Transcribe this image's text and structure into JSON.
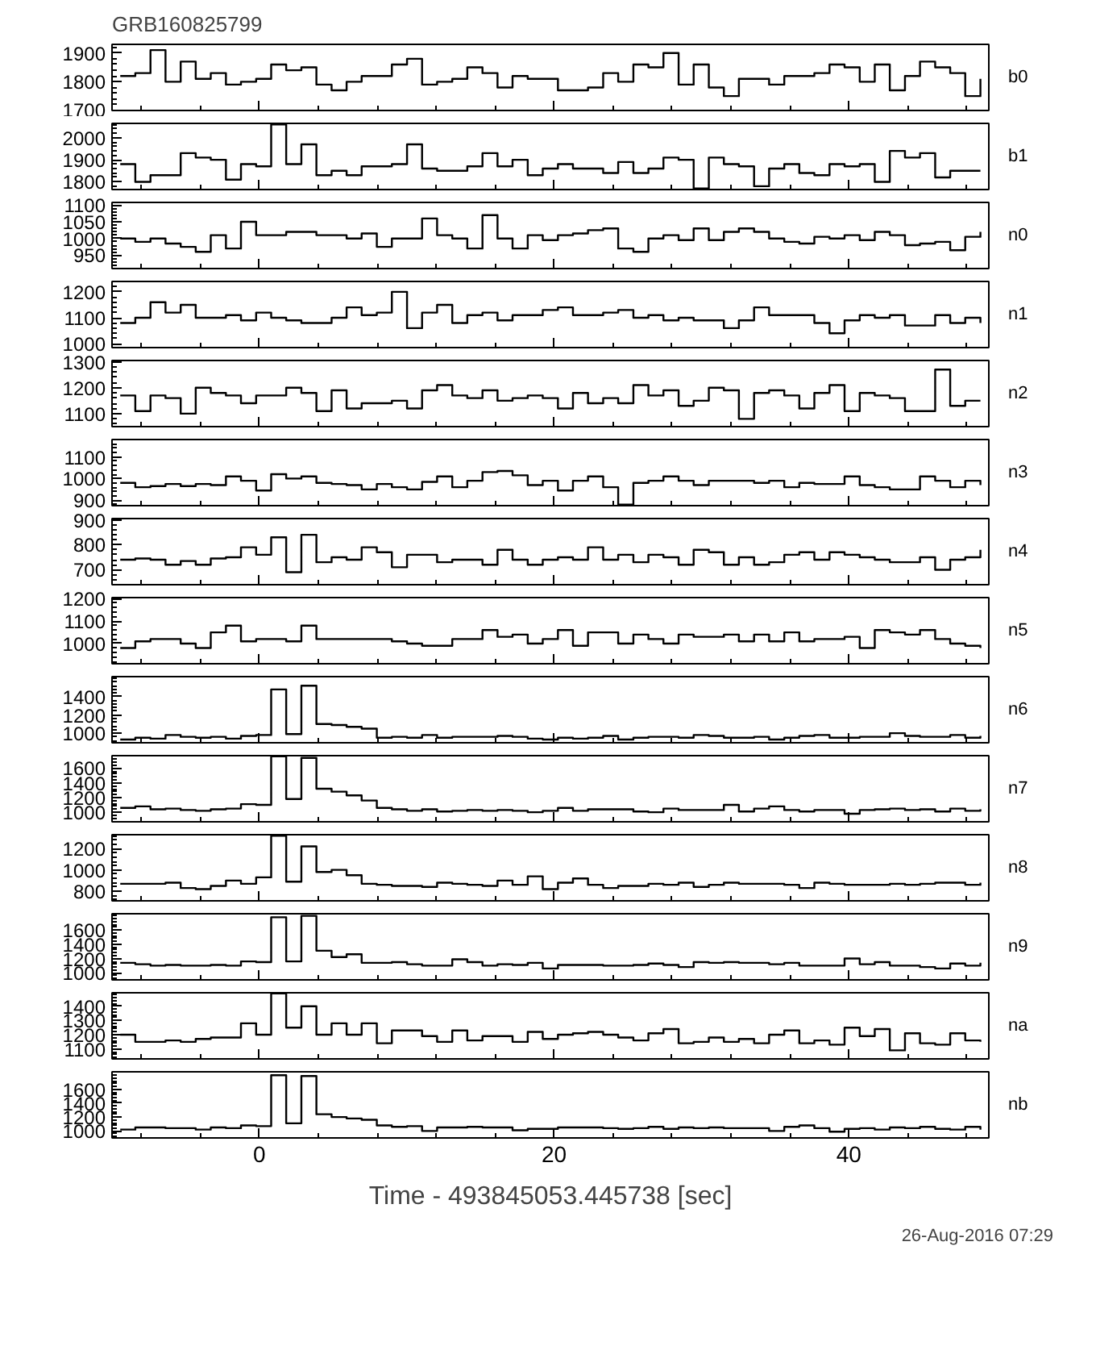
{
  "chart_data": [
    {
      "type": "step",
      "title": "GRB160825799",
      "xlim": [
        -10,
        49.5
      ],
      "xticks": [
        0,
        20,
        40
      ],
      "ylim": [
        1700,
        1930
      ],
      "yticks": [
        1700,
        1800,
        1900
      ],
      "tick_labels": "y",
      "x": [
        -9.44,
        -8.42,
        -7.39,
        -6.37,
        -5.34,
        -4.32,
        -3.3,
        -2.27,
        -1.25,
        -0.22,
        0.8,
        1.82,
        2.85,
        3.87,
        4.9,
        5.92,
        6.94,
        7.97,
        8.99,
        10.02,
        11.04,
        12.06,
        13.09,
        14.11,
        15.14,
        16.16,
        17.18,
        18.21,
        19.23,
        20.26,
        21.28,
        22.3,
        23.33,
        24.35,
        25.38,
        26.4,
        27.42,
        28.45,
        29.47,
        30.5,
        31.52,
        32.54,
        33.57,
        34.59,
        35.62,
        36.64,
        37.66,
        38.69,
        39.71,
        40.74,
        41.76,
        42.78,
        43.81,
        44.83,
        45.86,
        46.88,
        47.9,
        48.93
      ],
      "series": [
        {
          "name": "b0",
          "color": "#000000",
          "values": [
            1820,
            1830,
            1910,
            1800,
            1870,
            1810,
            1830,
            1790,
            1800,
            1810,
            1860,
            1840,
            1850,
            1790,
            1770,
            1800,
            1820,
            1820,
            1860,
            1880,
            1790,
            1800,
            1810,
            1850,
            1830,
            1780,
            1820,
            1810,
            1810,
            1770,
            1770,
            1780,
            1830,
            1800,
            1860,
            1850,
            1900,
            1790,
            1860,
            1780,
            1750,
            1810,
            1810,
            1790,
            1820,
            1820,
            1830,
            1860,
            1850,
            1800,
            1860,
            1770,
            1820,
            1870,
            1850,
            1830,
            1750,
            1810
          ]
        }
      ]
    },
    {
      "type": "step",
      "xlim": [
        -10,
        49.5
      ],
      "xticks": [
        0,
        20,
        40
      ],
      "ylim": [
        1765,
        2065
      ],
      "yticks": [
        1800,
        1900,
        2000
      ],
      "tick_labels": "y",
      "x": [
        -9.44,
        -8.42,
        -7.39,
        -6.37,
        -5.34,
        -4.32,
        -3.3,
        -2.27,
        -1.25,
        -0.22,
        0.8,
        1.82,
        2.85,
        3.87,
        4.9,
        5.92,
        6.94,
        7.97,
        8.99,
        10.02,
        11.04,
        12.06,
        13.09,
        14.11,
        15.14,
        16.16,
        17.18,
        18.21,
        19.23,
        20.26,
        21.28,
        22.3,
        23.33,
        24.35,
        25.38,
        26.4,
        27.42,
        28.45,
        29.47,
        30.5,
        31.52,
        32.54,
        33.57,
        34.59,
        35.62,
        36.64,
        37.66,
        38.69,
        39.71,
        40.74,
        41.76,
        42.78,
        43.81,
        44.83,
        45.86,
        46.88,
        47.9,
        48.93
      ],
      "series": [
        {
          "name": "b1",
          "color": "#000000",
          "values": [
            1880,
            1800,
            1830,
            1830,
            1930,
            1910,
            1900,
            1810,
            1880,
            1870,
            2060,
            1880,
            1970,
            1830,
            1850,
            1830,
            1870,
            1870,
            1880,
            1970,
            1860,
            1850,
            1850,
            1870,
            1930,
            1870,
            1900,
            1830,
            1860,
            1880,
            1860,
            1860,
            1840,
            1890,
            1840,
            1860,
            1910,
            1900,
            1770,
            1910,
            1880,
            1870,
            1780,
            1860,
            1880,
            1840,
            1830,
            1880,
            1870,
            1880,
            1800,
            1940,
            1910,
            1930,
            1820,
            1850,
            1850,
            1850
          ]
        }
      ]
    },
    {
      "type": "step",
      "xlim": [
        -10,
        49.5
      ],
      "xticks": [
        0,
        20,
        40
      ],
      "ylim": [
        910,
        1108
      ],
      "yticks": [
        950,
        1000,
        1050,
        1100
      ],
      "tick_labels": "y",
      "x": [
        -9.44,
        -8.42,
        -7.39,
        -6.37,
        -5.34,
        -4.32,
        -3.3,
        -2.27,
        -1.25,
        -0.22,
        0.8,
        1.82,
        2.85,
        3.87,
        4.9,
        5.92,
        6.94,
        7.97,
        8.99,
        10.02,
        11.04,
        12.06,
        13.09,
        14.11,
        15.14,
        16.16,
        17.18,
        18.21,
        19.23,
        20.26,
        21.28,
        22.3,
        23.33,
        24.35,
        25.38,
        26.4,
        27.42,
        28.45,
        29.47,
        30.5,
        31.52,
        32.54,
        33.57,
        34.59,
        35.62,
        36.64,
        37.66,
        38.69,
        39.71,
        40.74,
        41.76,
        42.78,
        43.81,
        44.83,
        45.86,
        46.88,
        47.9,
        48.93
      ],
      "series": [
        {
          "name": "n0",
          "color": "#000000",
          "values": [
            1000,
            990,
            1000,
            985,
            975,
            960,
            1010,
            970,
            1050,
            1010,
            1010,
            1020,
            1020,
            1010,
            1010,
            1000,
            1015,
            975,
            1000,
            1000,
            1060,
            1010,
            1000,
            970,
            1070,
            1000,
            970,
            1010,
            995,
            1010,
            1015,
            1025,
            1030,
            970,
            960,
            1000,
            1010,
            995,
            1030,
            995,
            1020,
            1030,
            1020,
            1000,
            990,
            985,
            1005,
            1000,
            1010,
            995,
            1020,
            1010,
            980,
            985,
            990,
            965,
            1005,
            1020
          ]
        }
      ]
    },
    {
      "type": "step",
      "xlim": [
        -10,
        49.5
      ],
      "xticks": [
        0,
        20,
        40
      ],
      "ylim": [
        985,
        1240
      ],
      "yticks": [
        1000,
        1100,
        1200
      ],
      "tick_labels": "y",
      "x": [
        -9.44,
        -8.42,
        -7.39,
        -6.37,
        -5.34,
        -4.32,
        -3.3,
        -2.27,
        -1.25,
        -0.22,
        0.8,
        1.82,
        2.85,
        3.87,
        4.9,
        5.92,
        6.94,
        7.97,
        8.99,
        10.02,
        11.04,
        12.06,
        13.09,
        14.11,
        15.14,
        16.16,
        17.18,
        18.21,
        19.23,
        20.26,
        21.28,
        22.3,
        23.33,
        24.35,
        25.38,
        26.4,
        27.42,
        28.45,
        29.47,
        30.5,
        31.52,
        32.54,
        33.57,
        34.59,
        35.62,
        36.64,
        37.66,
        38.69,
        39.71,
        40.74,
        41.76,
        42.78,
        43.81,
        44.83,
        45.86,
        46.88,
        47.9,
        48.93
      ],
      "series": [
        {
          "name": "n1",
          "color": "#000000",
          "values": [
            1080,
            1100,
            1160,
            1120,
            1150,
            1100,
            1100,
            1110,
            1090,
            1120,
            1100,
            1090,
            1080,
            1080,
            1100,
            1140,
            1110,
            1120,
            1200,
            1060,
            1120,
            1150,
            1080,
            1110,
            1120,
            1090,
            1110,
            1110,
            1130,
            1140,
            1110,
            1110,
            1120,
            1130,
            1100,
            1110,
            1090,
            1100,
            1090,
            1090,
            1060,
            1090,
            1140,
            1110,
            1110,
            1110,
            1080,
            1040,
            1090,
            1110,
            1100,
            1110,
            1070,
            1070,
            1110,
            1080,
            1100,
            1080
          ]
        }
      ]
    },
    {
      "type": "step",
      "xlim": [
        -10,
        49.5
      ],
      "xticks": [
        0,
        20,
        40
      ],
      "ylim": [
        1050,
        1305
      ],
      "yticks": [
        1100,
        1200,
        1300
      ],
      "tick_labels": "y",
      "x": [
        -9.44,
        -8.42,
        -7.39,
        -6.37,
        -5.34,
        -4.32,
        -3.3,
        -2.27,
        -1.25,
        -0.22,
        0.8,
        1.82,
        2.85,
        3.87,
        4.9,
        5.92,
        6.94,
        7.97,
        8.99,
        10.02,
        11.04,
        12.06,
        13.09,
        14.11,
        15.14,
        16.16,
        17.18,
        18.21,
        19.23,
        20.26,
        21.28,
        22.3,
        23.33,
        24.35,
        25.38,
        26.4,
        27.42,
        28.45,
        29.47,
        30.5,
        31.52,
        32.54,
        33.57,
        34.59,
        35.62,
        36.64,
        37.66,
        38.69,
        39.71,
        40.74,
        41.76,
        42.78,
        43.81,
        44.83,
        45.86,
        46.88,
        47.9,
        48.93
      ],
      "series": [
        {
          "name": "n2",
          "color": "#000000",
          "values": [
            1170,
            1110,
            1170,
            1160,
            1100,
            1200,
            1180,
            1170,
            1140,
            1170,
            1170,
            1200,
            1180,
            1110,
            1190,
            1120,
            1140,
            1140,
            1150,
            1120,
            1190,
            1210,
            1170,
            1160,
            1190,
            1150,
            1160,
            1170,
            1160,
            1120,
            1180,
            1140,
            1160,
            1140,
            1210,
            1170,
            1190,
            1130,
            1150,
            1200,
            1190,
            1080,
            1180,
            1190,
            1170,
            1120,
            1180,
            1210,
            1110,
            1180,
            1170,
            1160,
            1110,
            1110,
            1270,
            1130,
            1150,
            1150
          ]
        }
      ]
    },
    {
      "type": "step",
      "xlim": [
        -10,
        49.5
      ],
      "xticks": [
        0,
        20,
        40
      ],
      "ylim": [
        875,
        1180
      ],
      "yticks": [
        900,
        1000,
        1100
      ],
      "tick_labels": "y",
      "x": [
        -9.44,
        -8.42,
        -7.39,
        -6.37,
        -5.34,
        -4.32,
        -3.3,
        -2.27,
        -1.25,
        -0.22,
        0.8,
        1.82,
        2.85,
        3.87,
        4.9,
        5.92,
        6.94,
        7.97,
        8.99,
        10.02,
        11.04,
        12.06,
        13.09,
        14.11,
        15.14,
        16.16,
        17.18,
        18.21,
        19.23,
        20.26,
        21.28,
        22.3,
        23.33,
        24.35,
        25.38,
        26.4,
        27.42,
        28.45,
        29.47,
        30.5,
        31.52,
        32.54,
        33.57,
        34.59,
        35.62,
        36.64,
        37.66,
        38.69,
        39.71,
        40.74,
        41.76,
        42.78,
        43.81,
        44.83,
        45.86,
        46.88,
        47.9,
        48.93
      ],
      "series": [
        {
          "name": "n3",
          "color": "#000000",
          "values": [
            980,
            960,
            965,
            975,
            965,
            975,
            970,
            1010,
            990,
            945,
            1020,
            1000,
            1010,
            980,
            975,
            970,
            950,
            975,
            960,
            950,
            985,
            1010,
            960,
            990,
            1030,
            1035,
            1015,
            970,
            990,
            945,
            990,
            1010,
            960,
            880,
            980,
            990,
            1010,
            990,
            970,
            990,
            990,
            990,
            980,
            990,
            960,
            980,
            975,
            975,
            1010,
            970,
            960,
            950,
            950,
            1010,
            990,
            960,
            990,
            970
          ]
        }
      ]
    },
    {
      "type": "step",
      "xlim": [
        -10,
        49.5
      ],
      "xticks": [
        0,
        20,
        40
      ],
      "ylim": [
        640,
        905
      ],
      "yticks": [
        700,
        800,
        900
      ],
      "tick_labels": "y",
      "x": [
        -9.44,
        -8.42,
        -7.39,
        -6.37,
        -5.34,
        -4.32,
        -3.3,
        -2.27,
        -1.25,
        -0.22,
        0.8,
        1.82,
        2.85,
        3.87,
        4.9,
        5.92,
        6.94,
        7.97,
        8.99,
        10.02,
        11.04,
        12.06,
        13.09,
        14.11,
        15.14,
        16.16,
        17.18,
        18.21,
        19.23,
        20.26,
        21.28,
        22.3,
        23.33,
        24.35,
        25.38,
        26.4,
        27.42,
        28.45,
        29.47,
        30.5,
        31.52,
        32.54,
        33.57,
        34.59,
        35.62,
        36.64,
        37.66,
        38.69,
        39.71,
        40.74,
        41.76,
        42.78,
        43.81,
        44.83,
        45.86,
        46.88,
        47.9,
        48.93
      ],
      "series": [
        {
          "name": "n4",
          "color": "#000000",
          "values": [
            740,
            745,
            740,
            720,
            735,
            720,
            745,
            750,
            790,
            760,
            830,
            690,
            840,
            730,
            750,
            740,
            790,
            770,
            710,
            760,
            760,
            730,
            740,
            740,
            720,
            780,
            740,
            720,
            740,
            750,
            740,
            790,
            740,
            760,
            730,
            760,
            750,
            720,
            780,
            770,
            720,
            750,
            720,
            730,
            760,
            770,
            740,
            770,
            760,
            750,
            740,
            730,
            730,
            750,
            700,
            740,
            750,
            780
          ]
        }
      ]
    },
    {
      "type": "step",
      "xlim": [
        -10,
        49.5
      ],
      "xticks": [
        0,
        20,
        40
      ],
      "ylim": [
        910,
        1205
      ],
      "yticks": [
        1000,
        1100,
        1200
      ],
      "tick_labels": "y",
      "x": [
        -9.44,
        -8.42,
        -7.39,
        -6.37,
        -5.34,
        -4.32,
        -3.3,
        -2.27,
        -1.25,
        -0.22,
        0.8,
        1.82,
        2.85,
        3.87,
        4.9,
        5.92,
        6.94,
        7.97,
        8.99,
        10.02,
        11.04,
        12.06,
        13.09,
        14.11,
        15.14,
        16.16,
        17.18,
        18.21,
        19.23,
        20.26,
        21.28,
        22.3,
        23.33,
        24.35,
        25.38,
        26.4,
        27.42,
        28.45,
        29.47,
        30.5,
        31.52,
        32.54,
        33.57,
        34.59,
        35.62,
        36.64,
        37.66,
        38.69,
        39.71,
        40.74,
        41.76,
        42.78,
        43.81,
        44.83,
        45.86,
        46.88,
        47.9,
        48.93
      ],
      "series": [
        {
          "name": "n5",
          "color": "#000000",
          "values": [
            980,
            1010,
            1020,
            1020,
            1000,
            980,
            1050,
            1080,
            1010,
            1020,
            1020,
            1010,
            1080,
            1020,
            1020,
            1020,
            1020,
            1020,
            1010,
            1000,
            990,
            990,
            1020,
            1020,
            1060,
            1030,
            1040,
            1000,
            1020,
            1060,
            990,
            1050,
            1050,
            1000,
            1040,
            1020,
            1000,
            1040,
            1030,
            1030,
            1040,
            1010,
            1040,
            1010,
            1050,
            1010,
            1020,
            1020,
            1030,
            980,
            1060,
            1050,
            1040,
            1060,
            1020,
            1000,
            990,
            980
          ]
        }
      ]
    },
    {
      "type": "step",
      "xlim": [
        -10,
        49.5
      ],
      "xticks": [
        0,
        20,
        40
      ],
      "ylim": [
        895,
        1620
      ],
      "yticks": [
        1000,
        1200,
        1400
      ],
      "tick_labels": "y",
      "x": [
        -9.44,
        -8.42,
        -7.39,
        -6.37,
        -5.34,
        -4.32,
        -3.3,
        -2.27,
        -1.25,
        -0.22,
        0.8,
        1.82,
        2.85,
        3.87,
        4.9,
        5.92,
        6.94,
        7.97,
        8.99,
        10.02,
        11.04,
        12.06,
        13.09,
        14.11,
        15.14,
        16.16,
        17.18,
        18.21,
        19.23,
        20.26,
        21.28,
        22.3,
        23.33,
        24.35,
        25.38,
        26.4,
        27.42,
        28.45,
        29.47,
        30.5,
        31.52,
        32.54,
        33.57,
        34.59,
        35.62,
        36.64,
        37.66,
        38.69,
        39.71,
        40.74,
        41.76,
        42.78,
        43.81,
        44.83,
        45.86,
        46.88,
        47.9,
        48.93
      ],
      "series": [
        {
          "name": "n6",
          "color": "#000000",
          "values": [
            930,
            950,
            940,
            980,
            960,
            950,
            960,
            940,
            970,
            980,
            1480,
            990,
            1520,
            1100,
            1090,
            1070,
            1050,
            950,
            960,
            950,
            980,
            950,
            960,
            960,
            960,
            970,
            960,
            940,
            930,
            950,
            940,
            950,
            970,
            930,
            950,
            960,
            960,
            950,
            980,
            970,
            950,
            950,
            960,
            930,
            950,
            970,
            980,
            950,
            950,
            960,
            960,
            1000,
            970,
            960,
            960,
            980,
            950,
            970
          ]
        }
      ]
    },
    {
      "type": "step",
      "xlim": [
        -10,
        49.5
      ],
      "xticks": [
        0,
        20,
        40
      ],
      "ylim": [
        870,
        1770
      ],
      "yticks": [
        1000,
        1200,
        1400,
        1600
      ],
      "tick_labels": "y",
      "x": [
        -9.44,
        -8.42,
        -7.39,
        -6.37,
        -5.34,
        -4.32,
        -3.3,
        -2.27,
        -1.25,
        -0.22,
        0.8,
        1.82,
        2.85,
        3.87,
        4.9,
        5.92,
        6.94,
        7.97,
        8.99,
        10.02,
        11.04,
        12.06,
        13.09,
        14.11,
        15.14,
        16.16,
        17.18,
        18.21,
        19.23,
        20.26,
        21.28,
        22.3,
        23.33,
        24.35,
        25.38,
        26.4,
        27.42,
        28.45,
        29.47,
        30.5,
        31.52,
        32.54,
        33.57,
        34.59,
        35.62,
        36.64,
        37.66,
        38.69,
        39.71,
        40.74,
        41.76,
        42.78,
        43.81,
        44.83,
        45.86,
        46.88,
        47.9,
        48.93
      ],
      "series": [
        {
          "name": "n7",
          "color": "#000000",
          "values": [
            1060,
            1080,
            1040,
            1050,
            1030,
            1020,
            1040,
            1050,
            1110,
            1100,
            1760,
            1180,
            1740,
            1320,
            1280,
            1230,
            1160,
            1060,
            1040,
            1020,
            1040,
            1010,
            1020,
            1030,
            1020,
            1030,
            1020,
            1000,
            1020,
            1060,
            1020,
            1040,
            1040,
            1040,
            1010,
            1000,
            1050,
            1030,
            1030,
            1030,
            1100,
            1010,
            1050,
            1080,
            1030,
            1010,
            1030,
            1030,
            980,
            1030,
            1040,
            1050,
            1030,
            1040,
            1010,
            1050,
            1020,
            1040
          ]
        }
      ]
    },
    {
      "type": "step",
      "xlim": [
        -10,
        49.5
      ],
      "xticks": [
        0,
        20,
        40
      ],
      "ylim": [
        710,
        1330
      ],
      "yticks": [
        800,
        1000,
        1200
      ],
      "tick_labels": "y",
      "x": [
        -9.44,
        -8.42,
        -7.39,
        -6.37,
        -5.34,
        -4.32,
        -3.3,
        -2.27,
        -1.25,
        -0.22,
        0.8,
        1.82,
        2.85,
        3.87,
        4.9,
        5.92,
        6.94,
        7.97,
        8.99,
        10.02,
        11.04,
        12.06,
        13.09,
        14.11,
        15.14,
        16.16,
        17.18,
        18.21,
        19.23,
        20.26,
        21.28,
        22.3,
        23.33,
        24.35,
        25.38,
        26.4,
        27.42,
        28.45,
        29.47,
        30.5,
        31.52,
        32.54,
        33.57,
        34.59,
        35.62,
        36.64,
        37.66,
        38.69,
        39.71,
        40.74,
        41.76,
        42.78,
        43.81,
        44.83,
        45.86,
        46.88,
        47.9,
        48.93
      ],
      "series": [
        {
          "name": "n8",
          "color": "#000000",
          "values": [
            870,
            870,
            870,
            880,
            830,
            820,
            850,
            900,
            870,
            930,
            1320,
            890,
            1220,
            980,
            1000,
            950,
            870,
            860,
            850,
            850,
            840,
            880,
            870,
            860,
            850,
            900,
            860,
            940,
            820,
            880,
            920,
            860,
            830,
            850,
            850,
            870,
            860,
            880,
            840,
            860,
            880,
            870,
            870,
            870,
            860,
            830,
            880,
            870,
            860,
            860,
            860,
            870,
            860,
            870,
            880,
            880,
            860,
            880
          ]
        }
      ]
    },
    {
      "type": "step",
      "xlim": [
        -10,
        49.5
      ],
      "xticks": [
        0,
        20,
        40
      ],
      "ylim": [
        900,
        1830
      ],
      "yticks": [
        1000,
        1200,
        1400,
        1600
      ],
      "tick_labels": "y",
      "x": [
        -9.44,
        -8.42,
        -7.39,
        -6.37,
        -5.34,
        -4.32,
        -3.3,
        -2.27,
        -1.25,
        -0.22,
        0.8,
        1.82,
        2.85,
        3.87,
        4.9,
        5.92,
        6.94,
        7.97,
        8.99,
        10.02,
        11.04,
        12.06,
        13.09,
        14.11,
        15.14,
        16.16,
        17.18,
        18.21,
        19.23,
        20.26,
        21.28,
        22.3,
        23.33,
        24.35,
        25.38,
        26.4,
        27.42,
        28.45,
        29.47,
        30.5,
        31.52,
        32.54,
        33.57,
        34.59,
        35.62,
        36.64,
        37.66,
        38.69,
        39.71,
        40.74,
        41.76,
        42.78,
        43.81,
        44.83,
        45.86,
        46.88,
        47.9,
        48.93
      ],
      "series": [
        {
          "name": "n9",
          "color": "#000000",
          "values": [
            1140,
            1120,
            1100,
            1110,
            1100,
            1100,
            1110,
            1100,
            1160,
            1150,
            1780,
            1160,
            1800,
            1310,
            1220,
            1260,
            1140,
            1140,
            1150,
            1120,
            1100,
            1100,
            1190,
            1150,
            1100,
            1120,
            1110,
            1140,
            1060,
            1110,
            1110,
            1110,
            1100,
            1100,
            1110,
            1130,
            1110,
            1080,
            1150,
            1140,
            1150,
            1140,
            1140,
            1120,
            1140,
            1100,
            1100,
            1100,
            1200,
            1120,
            1150,
            1100,
            1100,
            1080,
            1060,
            1130,
            1100,
            1140
          ]
        }
      ]
    },
    {
      "type": "step",
      "xlim": [
        -10,
        49.5
      ],
      "xticks": [
        0,
        20,
        40
      ],
      "ylim": [
        1030,
        1495
      ],
      "yticks": [
        1100,
        1200,
        1300,
        1400
      ],
      "tick_labels": "y",
      "x": [
        -9.44,
        -8.42,
        -7.39,
        -6.37,
        -5.34,
        -4.32,
        -3.3,
        -2.27,
        -1.25,
        -0.22,
        0.8,
        1.82,
        2.85,
        3.87,
        4.9,
        5.92,
        6.94,
        7.97,
        8.99,
        10.02,
        11.04,
        12.06,
        13.09,
        14.11,
        15.14,
        16.16,
        17.18,
        18.21,
        19.23,
        20.26,
        21.28,
        22.3,
        23.33,
        24.35,
        25.38,
        26.4,
        27.42,
        28.45,
        29.47,
        30.5,
        31.52,
        32.54,
        33.57,
        34.59,
        35.62,
        36.64,
        37.66,
        38.69,
        39.71,
        40.74,
        41.76,
        42.78,
        43.81,
        44.83,
        45.86,
        46.88,
        47.9,
        48.93
      ],
      "series": [
        {
          "name": "na",
          "color": "#000000",
          "values": [
            1200,
            1150,
            1150,
            1160,
            1150,
            1170,
            1180,
            1180,
            1280,
            1200,
            1490,
            1250,
            1400,
            1200,
            1280,
            1200,
            1280,
            1140,
            1230,
            1230,
            1190,
            1150,
            1230,
            1160,
            1190,
            1190,
            1150,
            1220,
            1170,
            1200,
            1210,
            1220,
            1200,
            1180,
            1160,
            1210,
            1240,
            1140,
            1150,
            1180,
            1150,
            1170,
            1140,
            1200,
            1230,
            1140,
            1160,
            1130,
            1250,
            1190,
            1240,
            1090,
            1210,
            1140,
            1130,
            1210,
            1160,
            1150
          ]
        }
      ]
    },
    {
      "type": "step",
      "xlabel": "Time - 493845053.445738 [sec]",
      "annotations": [
        "26-Aug-2016 07:29"
      ],
      "xlim": [
        -10,
        49.5
      ],
      "xticks": [
        0,
        20,
        40
      ],
      "ylim": [
        900,
        1850
      ],
      "yticks": [
        1000,
        1200,
        1400,
        1600
      ],
      "x": [
        -9.44,
        -8.42,
        -7.39,
        -6.37,
        -5.34,
        -4.32,
        -3.3,
        -2.27,
        -1.25,
        -0.22,
        0.8,
        1.82,
        2.85,
        3.87,
        4.9,
        5.92,
        6.94,
        7.97,
        8.99,
        10.02,
        11.04,
        12.06,
        13.09,
        14.11,
        15.14,
        16.16,
        17.18,
        18.21,
        19.23,
        20.26,
        21.28,
        22.3,
        23.33,
        24.35,
        25.38,
        26.4,
        27.42,
        28.45,
        29.47,
        30.5,
        31.52,
        32.54,
        33.57,
        34.59,
        35.62,
        36.64,
        37.66,
        38.69,
        39.71,
        40.74,
        41.76,
        42.78,
        43.81,
        44.83,
        45.86,
        46.88,
        47.9,
        48.93
      ],
      "series": [
        {
          "name": "nb",
          "color": "#000000",
          "values": [
            1020,
            1050,
            1050,
            1040,
            1040,
            1020,
            1050,
            1040,
            1080,
            1070,
            1800,
            1110,
            1790,
            1240,
            1200,
            1180,
            1160,
            1080,
            1060,
            1070,
            1000,
            1050,
            1050,
            1060,
            1050,
            1050,
            1010,
            1030,
            1030,
            1050,
            1050,
            1050,
            1040,
            1030,
            1040,
            1060,
            1030,
            1050,
            1040,
            1050,
            1040,
            1040,
            1040,
            1000,
            1060,
            1080,
            1040,
            990,
            1030,
            1040,
            1020,
            1050,
            1040,
            1060,
            1030,
            1020,
            1060,
            1020
          ]
        }
      ]
    }
  ]
}
